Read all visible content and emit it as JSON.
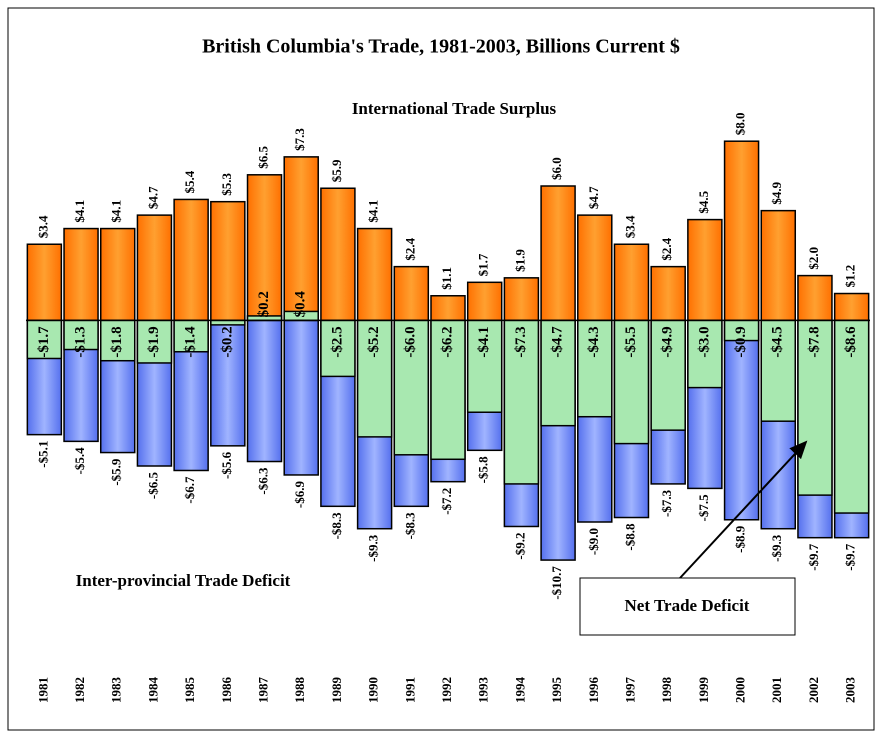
{
  "chart_data": {
    "type": "bar",
    "title": "British Columbia's Trade, 1981-2003, Billions Current $",
    "categories": [
      "1981",
      "1982",
      "1983",
      "1984",
      "1985",
      "1986",
      "1987",
      "1988",
      "1989",
      "1990",
      "1991",
      "1992",
      "1993",
      "1994",
      "1995",
      "1996",
      "1997",
      "1998",
      "1999",
      "2000",
      "2001",
      "2002",
      "2003"
    ],
    "ylim": [
      -14,
      8.5
    ],
    "series": [
      {
        "name": "International Trade Surplus",
        "color": "#ff8000",
        "values": [
          3.4,
          4.1,
          4.1,
          4.7,
          5.4,
          5.3,
          6.5,
          7.3,
          5.9,
          4.1,
          2.4,
          1.1,
          1.7,
          1.9,
          6.0,
          4.7,
          3.4,
          2.4,
          4.5,
          8.0,
          4.9,
          2.0,
          1.2
        ],
        "value_labels": [
          "$3.4",
          "$4.1",
          "$4.1",
          "$4.7",
          "$5.4",
          "$5.3",
          "$6.5",
          "$7.3",
          "$5.9",
          "$4.1",
          "$2.4",
          "$1.1",
          "$1.7",
          "$1.9",
          "$6.0",
          "$4.7",
          "$3.4",
          "$2.4",
          "$4.5",
          "$8.0",
          "$4.9",
          "$2.0",
          "$1.2"
        ]
      },
      {
        "name": "Inter-provincial Trade Deficit",
        "color": "#6f8cff",
        "values": [
          -5.1,
          -5.4,
          -5.9,
          -6.5,
          -6.7,
          -5.6,
          -6.3,
          -6.9,
          -8.3,
          -9.3,
          -8.3,
          -7.2,
          -5.8,
          -9.2,
          -10.7,
          -9.0,
          -8.8,
          -7.3,
          -7.5,
          -8.9,
          -9.3,
          -9.7,
          -9.7
        ],
        "value_labels": [
          "-$5.1",
          "-$5.4",
          "-$5.9",
          "-$6.5",
          "-$6.7",
          "-$5.6",
          "-$6.3",
          "-$6.9",
          "-$8.3",
          "-$9.3",
          "-$8.3",
          "-$7.2",
          "-$5.8",
          "-$9.2",
          "-$10.7",
          "-$9.0",
          "-$8.8",
          "-$7.3",
          "-$7.5",
          "-$8.9",
          "-$9.3",
          "-$9.7",
          "-$9.7"
        ]
      },
      {
        "name": "Net Trade Deficit",
        "color": "#a8e8b0",
        "values": [
          -1.7,
          -1.3,
          -1.8,
          -1.9,
          -1.4,
          -0.2,
          0.2,
          0.4,
          -2.5,
          -5.2,
          -6.0,
          -6.2,
          -4.1,
          -7.3,
          -4.7,
          -4.3,
          -5.5,
          -4.9,
          -3.0,
          -0.9,
          -4.5,
          -7.8,
          -8.6
        ],
        "value_labels": [
          "-$1.7",
          "-$1.3",
          "-$1.8",
          "-$1.9",
          "-$1.4",
          "-$0.2",
          "$0.2",
          "$0.4",
          "-$2.5",
          "-$5.2",
          "-$6.0",
          "-$6.2",
          "-$4.1",
          "-$7.3",
          "-$4.7",
          "-$4.3",
          "-$5.5",
          "-$4.9",
          "-$3.0",
          "-$0.9",
          "-$4.5",
          "-$7.8",
          "-$8.6"
        ]
      }
    ]
  }
}
